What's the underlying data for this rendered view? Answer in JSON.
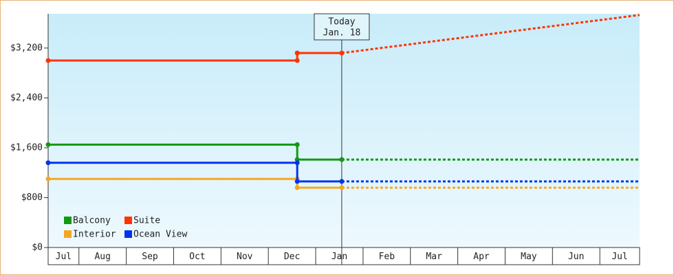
{
  "chart_data": {
    "type": "line",
    "series": [
      {
        "name": "Balcony",
        "color": "#119911",
        "x": [
          0.35,
          5.61,
          5.61,
          6.55
        ],
        "values": [
          1650,
          1650,
          1410,
          1410
        ],
        "projection": {
          "x": [
            6.55,
            12.84
          ],
          "values": [
            1410,
            1410
          ]
        }
      },
      {
        "name": "Suite",
        "color": "#ff3300",
        "x": [
          0.35,
          5.61,
          5.61,
          6.55
        ],
        "values": [
          3000,
          3000,
          3120,
          3120
        ],
        "projection": {
          "x": [
            6.55,
            12.84
          ],
          "values": [
            3120,
            3730
          ]
        }
      },
      {
        "name": "Interior",
        "color": "#f5a623",
        "x": [
          0.35,
          5.61,
          5.61,
          6.55
        ],
        "values": [
          1100,
          1100,
          960,
          960
        ],
        "projection": {
          "x": [
            6.55,
            12.84
          ],
          "values": [
            960,
            960
          ]
        }
      },
      {
        "name": "Ocean View",
        "color": "#0033ee",
        "x": [
          0.35,
          5.61,
          5.61,
          6.55
        ],
        "values": [
          1360,
          1360,
          1060,
          1060
        ],
        "projection": {
          "x": [
            6.55,
            12.84
          ],
          "values": [
            1060,
            1060
          ]
        }
      }
    ],
    "xlim": [
      0.35,
      12.84
    ],
    "xticks": [
      {
        "value": 0,
        "label": "Jul"
      },
      {
        "value": 1,
        "label": "Aug"
      },
      {
        "value": 2,
        "label": "Sep"
      },
      {
        "value": 3,
        "label": "Oct"
      },
      {
        "value": 4,
        "label": "Nov"
      },
      {
        "value": 5,
        "label": "Dec"
      },
      {
        "value": 6,
        "label": "Jan"
      },
      {
        "value": 7,
        "label": "Feb"
      },
      {
        "value": 8,
        "label": "Mar"
      },
      {
        "value": 9,
        "label": "Apr"
      },
      {
        "value": 10,
        "label": "May"
      },
      {
        "value": 11,
        "label": "Jun"
      },
      {
        "value": 12,
        "label": "Jul"
      }
    ],
    "ylim": [
      0,
      3750
    ],
    "yticks": [
      {
        "value": 0,
        "label": "$0"
      },
      {
        "value": 800,
        "label": "$800"
      },
      {
        "value": 1600,
        "label": "$1,600"
      },
      {
        "value": 2400,
        "label": "$2,400"
      },
      {
        "value": 3200,
        "label": "$3,200"
      }
    ],
    "annotation": {
      "x": 6.55,
      "lines": [
        "Today",
        "Jan. 18"
      ]
    }
  }
}
